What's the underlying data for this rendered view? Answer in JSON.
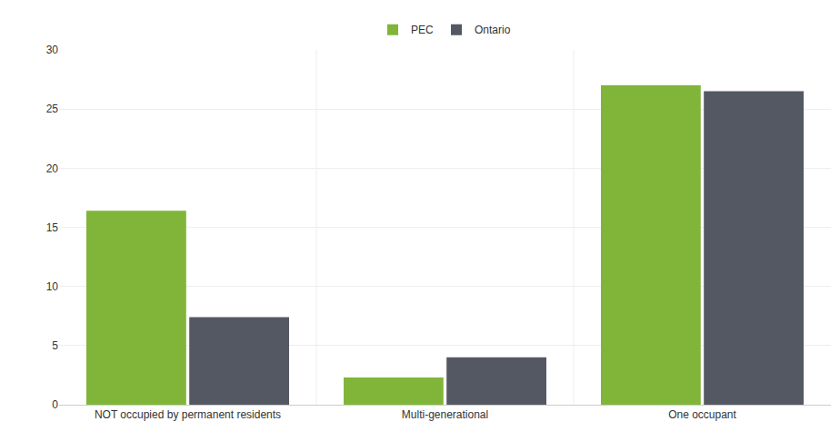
{
  "chart_data": {
    "type": "bar",
    "categories": [
      "NOT occupied by permanent residents",
      "Multi-generational",
      "One occupant"
    ],
    "series": [
      {
        "name": "PEC",
        "color": "#80b53a",
        "values": [
          16.4,
          2.3,
          27.0
        ]
      },
      {
        "name": "Ontario",
        "color": "#545862",
        "values": [
          7.4,
          4.0,
          26.5
        ]
      }
    ],
    "ylim": [
      0,
      30
    ],
    "yticks": [
      0,
      5,
      10,
      15,
      20,
      25,
      30
    ],
    "grid": true,
    "legend": "top"
  }
}
